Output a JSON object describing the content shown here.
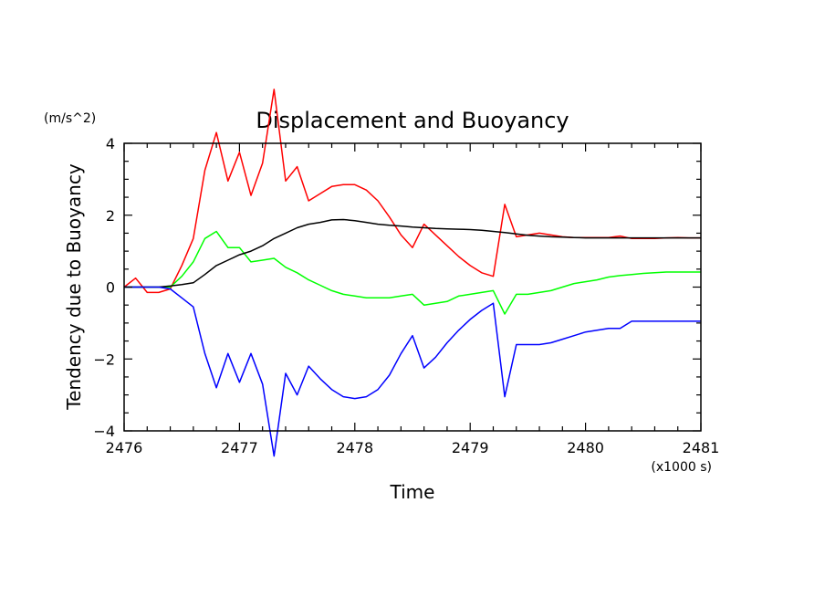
{
  "chart_data": {
    "type": "line",
    "title": "Displacement and Buoyancy",
    "xlabel": "Time",
    "ylabel": "Tendency due to Buoyancy",
    "y_unit": "(m/s^2)",
    "x_multiplier": "(x1000 s)",
    "xlim": [
      2476,
      2481
    ],
    "ylim": [
      -4,
      4
    ],
    "xticks": [
      2476,
      2477,
      2478,
      2479,
      2480,
      2481
    ],
    "xtick_labels": [
      "2476",
      "2477",
      "2478",
      "2479",
      "2480",
      "2481"
    ],
    "yticks": [
      -4,
      -2,
      0,
      2,
      4
    ],
    "ytick_labels": [
      "−4",
      "−2",
      "0",
      "2",
      "4"
    ],
    "grid": false,
    "series": [
      {
        "color": "#ff0000",
        "x": [
          2476.0,
          2476.1,
          2476.2,
          2476.3,
          2476.4,
          2476.5,
          2476.6,
          2476.7,
          2476.8,
          2476.9,
          2477.0,
          2477.1,
          2477.2,
          2477.3,
          2477.4,
          2477.5,
          2477.6,
          2477.7,
          2477.8,
          2477.9,
          2478.0,
          2478.1,
          2478.2,
          2478.3,
          2478.4,
          2478.5,
          2478.6,
          2478.7,
          2478.8,
          2478.9,
          2479.0,
          2479.1,
          2479.2,
          2479.3,
          2479.4,
          2479.5,
          2479.6,
          2479.7,
          2479.8,
          2479.9,
          2480.0,
          2480.1,
          2480.2,
          2480.3,
          2480.4,
          2480.5,
          2480.6,
          2480.7,
          2480.8,
          2480.9,
          2481.0
        ],
        "y": [
          0.0,
          0.25,
          -0.15,
          -0.15,
          -0.05,
          0.6,
          1.35,
          3.25,
          4.3,
          2.95,
          3.75,
          2.55,
          3.45,
          5.5,
          2.95,
          3.35,
          2.4,
          2.6,
          2.8,
          2.85,
          2.85,
          2.7,
          2.4,
          1.95,
          1.45,
          1.1,
          1.75,
          1.45,
          1.15,
          0.85,
          0.6,
          0.4,
          0.3,
          2.3,
          1.4,
          1.45,
          1.5,
          1.45,
          1.4,
          1.38,
          1.38,
          1.38,
          1.38,
          1.42,
          1.35,
          1.35,
          1.35,
          1.37,
          1.38,
          1.37,
          1.37
        ]
      },
      {
        "color": "#00ff00",
        "x": [
          2476.0,
          2476.1,
          2476.2,
          2476.3,
          2476.4,
          2476.5,
          2476.6,
          2476.7,
          2476.8,
          2476.9,
          2477.0,
          2477.1,
          2477.2,
          2477.3,
          2477.4,
          2477.5,
          2477.6,
          2477.7,
          2477.8,
          2477.9,
          2478.0,
          2478.1,
          2478.2,
          2478.3,
          2478.4,
          2478.5,
          2478.6,
          2478.7,
          2478.8,
          2478.9,
          2479.0,
          2479.1,
          2479.2,
          2479.3,
          2479.4,
          2479.5,
          2479.6,
          2479.7,
          2479.8,
          2479.9,
          2480.0,
          2480.1,
          2480.2,
          2480.3,
          2480.4,
          2480.5,
          2480.6,
          2480.7,
          2480.8,
          2480.9,
          2481.0
        ],
        "y": [
          0.0,
          0.0,
          0.0,
          0.0,
          0.0,
          0.3,
          0.7,
          1.35,
          1.55,
          1.1,
          1.1,
          0.7,
          0.75,
          0.8,
          0.55,
          0.4,
          0.2,
          0.05,
          -0.1,
          -0.2,
          -0.25,
          -0.3,
          -0.3,
          -0.3,
          -0.25,
          -0.2,
          -0.5,
          -0.45,
          -0.4,
          -0.25,
          -0.2,
          -0.15,
          -0.1,
          -0.75,
          -0.2,
          -0.2,
          -0.15,
          -0.1,
          0.0,
          0.1,
          0.15,
          0.2,
          0.28,
          0.32,
          0.35,
          0.38,
          0.4,
          0.42,
          0.42,
          0.42,
          0.42
        ]
      },
      {
        "color": "#000000",
        "x": [
          2476.0,
          2476.1,
          2476.2,
          2476.3,
          2476.4,
          2476.5,
          2476.6,
          2476.7,
          2476.8,
          2476.9,
          2477.0,
          2477.1,
          2477.2,
          2477.3,
          2477.4,
          2477.5,
          2477.6,
          2477.7,
          2477.8,
          2477.9,
          2478.0,
          2478.1,
          2478.2,
          2478.3,
          2478.4,
          2478.5,
          2478.6,
          2478.7,
          2478.8,
          2478.9,
          2479.0,
          2479.1,
          2479.2,
          2479.3,
          2479.4,
          2479.5,
          2479.6,
          2479.7,
          2479.8,
          2479.9,
          2480.0,
          2480.1,
          2480.2,
          2480.3,
          2480.4,
          2480.5,
          2480.6,
          2480.7,
          2480.8,
          2480.9,
          2481.0
        ],
        "y": [
          0.0,
          0.0,
          0.0,
          0.0,
          0.03,
          0.07,
          0.12,
          0.35,
          0.6,
          0.75,
          0.9,
          1.0,
          1.15,
          1.35,
          1.5,
          1.65,
          1.75,
          1.8,
          1.87,
          1.88,
          1.85,
          1.8,
          1.75,
          1.72,
          1.7,
          1.67,
          1.65,
          1.63,
          1.62,
          1.61,
          1.6,
          1.58,
          1.55,
          1.52,
          1.48,
          1.44,
          1.42,
          1.4,
          1.39,
          1.38,
          1.37,
          1.37,
          1.37,
          1.37,
          1.37,
          1.37,
          1.37,
          1.37,
          1.37,
          1.37,
          1.37
        ]
      },
      {
        "color": "#0000ff",
        "x": [
          2476.0,
          2476.1,
          2476.2,
          2476.3,
          2476.4,
          2476.5,
          2476.6,
          2476.7,
          2476.8,
          2476.9,
          2477.0,
          2477.1,
          2477.2,
          2477.3,
          2477.4,
          2477.5,
          2477.6,
          2477.7,
          2477.8,
          2477.9,
          2478.0,
          2478.1,
          2478.2,
          2478.3,
          2478.4,
          2478.5,
          2478.6,
          2478.7,
          2478.8,
          2478.9,
          2479.0,
          2479.1,
          2479.2,
          2479.3,
          2479.4,
          2479.5,
          2479.6,
          2479.7,
          2479.8,
          2479.9,
          2480.0,
          2480.1,
          2480.2,
          2480.3,
          2480.4,
          2480.5,
          2480.6,
          2480.7,
          2480.8,
          2480.9,
          2481.0
        ],
        "y": [
          0.0,
          0.0,
          0.0,
          0.0,
          -0.05,
          -0.3,
          -0.55,
          -1.85,
          -2.8,
          -1.85,
          -2.65,
          -1.85,
          -2.7,
          -4.7,
          -2.4,
          -3.0,
          -2.2,
          -2.55,
          -2.85,
          -3.05,
          -3.1,
          -3.05,
          -2.85,
          -2.45,
          -1.85,
          -1.35,
          -2.25,
          -1.95,
          -1.55,
          -1.2,
          -0.9,
          -0.65,
          -0.45,
          -3.05,
          -1.6,
          -1.6,
          -1.6,
          -1.55,
          -1.45,
          -1.35,
          -1.25,
          -1.2,
          -1.15,
          -1.15,
          -0.95,
          -0.95,
          -0.95,
          -0.95,
          -0.95,
          -0.95,
          -0.95
        ]
      }
    ]
  }
}
